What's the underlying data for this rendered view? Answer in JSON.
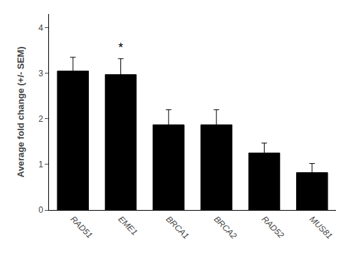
{
  "chart_data": {
    "type": "bar",
    "categories": [
      "RAD51",
      "EME1",
      "BRCA1",
      "BRCA2",
      "RAD52",
      "MUS81"
    ],
    "values": [
      3.05,
      2.97,
      1.87,
      1.87,
      1.25,
      0.82
    ],
    "errors": [
      0.3,
      0.35,
      0.33,
      0.33,
      0.22,
      0.2
    ],
    "color": "#000000",
    "ylabel": "Average fold change (+/- SEM)",
    "ylim": [
      0,
      4.3
    ],
    "yticks": [
      0,
      1,
      2,
      3,
      4
    ],
    "annotations": [
      {
        "text": "*",
        "x": "EME1"
      }
    ],
    "grid": false
  }
}
